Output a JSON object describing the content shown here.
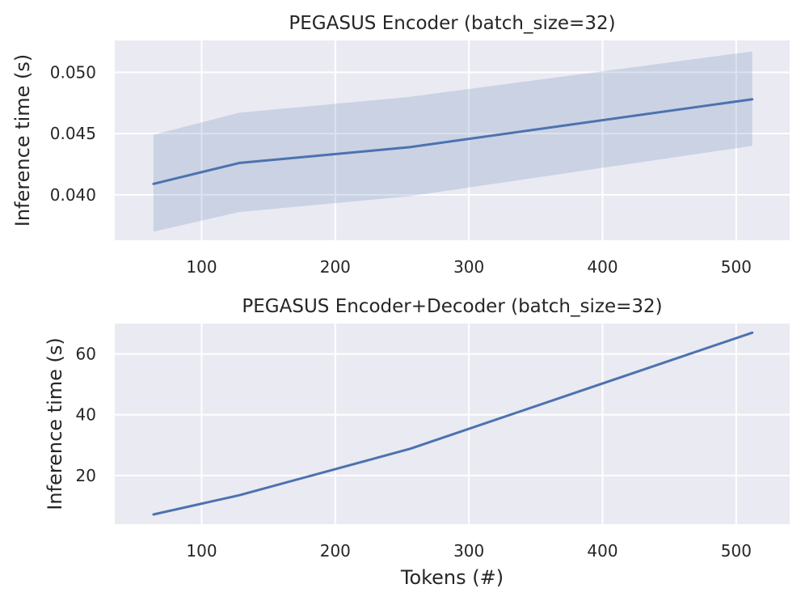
{
  "chart_data": [
    {
      "type": "line",
      "title": "PEGASUS Encoder (batch_size=32)",
      "xlabel": "",
      "ylabel": "Inference time (s)",
      "xlim": [
        35,
        540
      ],
      "ylim": [
        0.0363,
        0.0526
      ],
      "xticks": [
        100,
        200,
        300,
        400,
        500
      ],
      "yticks": [
        0.04,
        0.045,
        0.05
      ],
      "xtick_labels": [
        "100",
        "200",
        "300",
        "400",
        "500"
      ],
      "ytick_labels": [
        "0.040",
        "0.045",
        "0.050"
      ],
      "grid": true,
      "x": [
        64,
        128,
        256,
        512
      ],
      "series": [
        {
          "values": [
            0.0409,
            0.0426,
            0.0439,
            0.0478
          ],
          "band_lower": [
            0.037,
            0.0386,
            0.0399,
            0.044
          ],
          "band_upper": [
            0.0449,
            0.0467,
            0.048,
            0.0517
          ],
          "color": "#4c72b0"
        }
      ]
    },
    {
      "type": "line",
      "title": "PEGASUS Encoder+Decoder (batch_size=32)",
      "xlabel": "Tokens (#)",
      "ylabel": "Inference time (s)",
      "xlim": [
        35,
        540
      ],
      "ylim": [
        4,
        70
      ],
      "xticks": [
        100,
        200,
        300,
        400,
        500
      ],
      "yticks": [
        20,
        40,
        60
      ],
      "xtick_labels": [
        "100",
        "200",
        "300",
        "400",
        "500"
      ],
      "ytick_labels": [
        "20",
        "40",
        "60"
      ],
      "grid": true,
      "x": [
        64,
        128,
        256,
        512
      ],
      "series": [
        {
          "values": [
            7.2,
            13.5,
            28.8,
            67.0
          ],
          "color": "#4c72b0"
        }
      ]
    }
  ],
  "style": {
    "plot_background": "#eaeaf2",
    "grid_color": "#ffffff",
    "line_color": "#4c72b0",
    "band_color": "#4c72b0"
  }
}
